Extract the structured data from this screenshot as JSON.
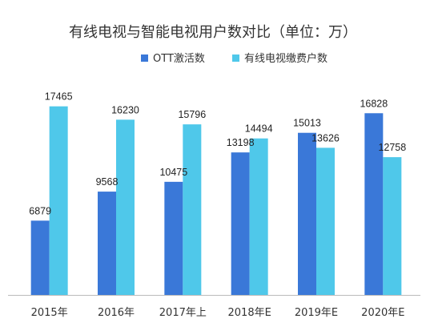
{
  "chart_data": {
    "type": "bar",
    "title": "有线电视与智能电视用户数对比（单位：万）",
    "categories": [
      "2015年",
      "2016年",
      "2017年上",
      "2018年E",
      "2019年E",
      "2020年E"
    ],
    "series": [
      {
        "name": "OTT激活数",
        "color": "#3a78d8",
        "values": [
          6879,
          9568,
          10475,
          13198,
          15013,
          16828
        ]
      },
      {
        "name": "有线电视缴费户数",
        "color": "#4fc8ea",
        "values": [
          17465,
          16230,
          15796,
          14494,
          13626,
          12758
        ]
      }
    ],
    "ylim": [
      0,
      19000
    ],
    "legend": "top-right",
    "grid": false,
    "xlabel": "",
    "ylabel": ""
  },
  "colors": {
    "axis": "#bbbbbb",
    "text": "#333333"
  }
}
